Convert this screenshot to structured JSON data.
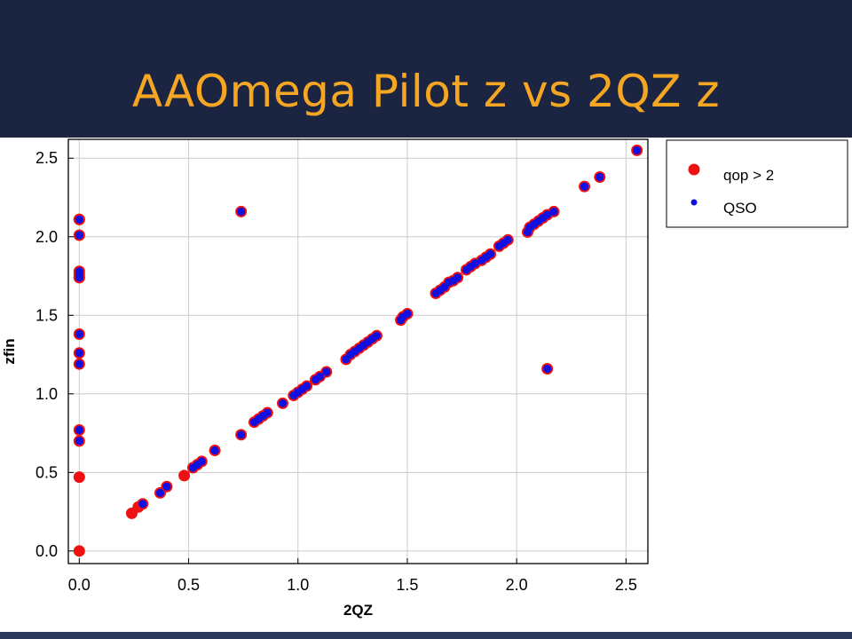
{
  "slide": {
    "title": "AAOmega Pilot z  vs 2QZ z"
  },
  "colors": {
    "title": "#f5a623",
    "background": "#1b2440",
    "point_fill_qso": "#1010e0",
    "point_edge_qop": "#ee1111",
    "grid": "#cccccc"
  },
  "chart_data": {
    "type": "scatter",
    "title": "",
    "xlabel": "2QZ",
    "ylabel": "zfin",
    "xlim": [
      -0.05,
      2.6
    ],
    "ylim": [
      -0.08,
      2.62
    ],
    "xticks": [
      0.0,
      0.5,
      1.0,
      1.5,
      2.0,
      2.5
    ],
    "yticks": [
      0.0,
      0.5,
      1.0,
      1.5,
      2.0,
      2.5
    ],
    "xtick_labels": [
      "0.0",
      "0.5",
      "1.0",
      "1.5",
      "2.0",
      "2.5"
    ],
    "ytick_labels": [
      "0.0",
      "0.5",
      "1.0",
      "1.5",
      "2.0",
      "2.5"
    ],
    "grid": true,
    "legend_position": "outside-top-right",
    "series": [
      {
        "name": "qop > 2",
        "color": "#ee1111",
        "x": [
          0.0,
          0.0,
          0.0,
          0.0,
          0.0,
          0.0,
          0.0,
          0.0,
          0.0,
          0.0,
          0.0,
          0.0,
          0.0,
          0.0,
          0.24,
          0.27,
          0.29,
          0.37,
          0.4,
          0.48,
          0.52,
          0.54,
          0.56,
          0.62,
          0.74,
          0.74,
          0.8,
          0.82,
          0.84,
          0.86,
          0.93,
          0.98,
          1.0,
          1.02,
          1.04,
          1.08,
          1.1,
          1.13,
          1.22,
          1.24,
          1.26,
          1.28,
          1.3,
          1.32,
          1.34,
          1.36,
          1.47,
          1.48,
          1.5,
          1.63,
          1.65,
          1.67,
          1.69,
          1.71,
          1.73,
          1.77,
          1.79,
          1.81,
          1.84,
          1.86,
          1.88,
          1.92,
          1.94,
          1.96,
          2.05,
          2.06,
          2.08,
          2.1,
          2.12,
          2.14,
          2.17,
          2.31,
          2.38,
          2.55,
          2.14
        ],
        "y": [
          0.0,
          0.47,
          0.7,
          0.77,
          1.19,
          1.26,
          1.38,
          1.74,
          1.76,
          1.78,
          2.01,
          2.11,
          2.11,
          1.74,
          0.24,
          0.28,
          0.3,
          0.37,
          0.41,
          0.48,
          0.53,
          0.55,
          0.57,
          0.64,
          0.74,
          2.16,
          0.82,
          0.84,
          0.86,
          0.88,
          0.94,
          0.99,
          1.01,
          1.03,
          1.05,
          1.09,
          1.11,
          1.14,
          1.22,
          1.25,
          1.27,
          1.29,
          1.31,
          1.33,
          1.35,
          1.37,
          1.47,
          1.49,
          1.51,
          1.64,
          1.66,
          1.68,
          1.71,
          1.72,
          1.74,
          1.79,
          1.81,
          1.83,
          1.85,
          1.87,
          1.89,
          1.94,
          1.96,
          1.98,
          2.03,
          2.06,
          2.08,
          2.1,
          2.12,
          2.14,
          2.16,
          2.32,
          2.38,
          2.55,
          1.16
        ]
      },
      {
        "name": "QSO",
        "color": "#1010e0",
        "x": [
          0.0,
          0.0,
          0.0,
          0.0,
          0.0,
          0.0,
          0.0,
          0.0,
          0.0,
          0.0,
          0.0,
          0.0,
          0.29,
          0.37,
          0.4,
          0.52,
          0.54,
          0.56,
          0.62,
          0.74,
          0.74,
          0.8,
          0.82,
          0.84,
          0.86,
          0.93,
          0.98,
          1.0,
          1.02,
          1.04,
          1.08,
          1.1,
          1.13,
          1.22,
          1.24,
          1.26,
          1.28,
          1.3,
          1.32,
          1.34,
          1.36,
          1.47,
          1.48,
          1.5,
          1.63,
          1.65,
          1.67,
          1.69,
          1.71,
          1.73,
          1.77,
          1.79,
          1.81,
          1.84,
          1.86,
          1.88,
          1.92,
          1.94,
          1.96,
          2.05,
          2.06,
          2.08,
          2.1,
          2.12,
          2.14,
          2.17,
          2.31,
          2.38,
          2.55,
          2.14
        ],
        "y": [
          0.7,
          0.77,
          1.19,
          1.26,
          1.38,
          1.74,
          1.76,
          1.78,
          2.01,
          2.11,
          2.11,
          1.74,
          0.3,
          0.37,
          0.41,
          0.53,
          0.55,
          0.57,
          0.64,
          0.74,
          2.16,
          0.82,
          0.84,
          0.86,
          0.88,
          0.94,
          0.99,
          1.01,
          1.03,
          1.05,
          1.09,
          1.11,
          1.14,
          1.22,
          1.25,
          1.27,
          1.29,
          1.31,
          1.33,
          1.35,
          1.37,
          1.47,
          1.49,
          1.51,
          1.64,
          1.66,
          1.68,
          1.71,
          1.72,
          1.74,
          1.79,
          1.81,
          1.83,
          1.85,
          1.87,
          1.89,
          1.94,
          1.96,
          1.98,
          2.03,
          2.06,
          2.08,
          2.1,
          2.12,
          2.14,
          2.16,
          2.32,
          2.38,
          2.55,
          1.16
        ]
      }
    ]
  }
}
